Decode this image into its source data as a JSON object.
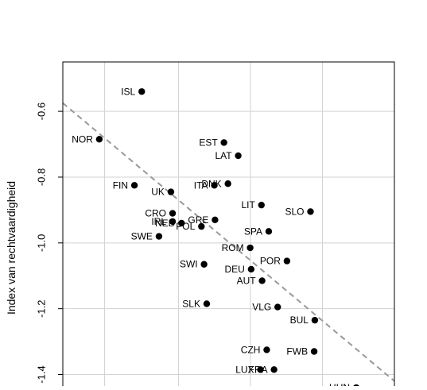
{
  "chart_data": {
    "type": "scatter",
    "title": "",
    "xlabel": "",
    "ylabel": "Index van rechtvaardigheid",
    "ylim": [
      -1.435,
      -0.45
    ],
    "xlim": [
      0,
      100
    ],
    "y_ticks": [
      -0.6,
      -0.8,
      -1.0,
      -1.2,
      -1.4
    ],
    "y_tick_labels": [
      "-0.6",
      "-0.8",
      "-1.0",
      "-1.2",
      "-1.4"
    ],
    "grid": true,
    "points": [
      {
        "label": "ISL",
        "x": 23.8,
        "y": -0.54
      },
      {
        "label": "NOR",
        "x": 11.0,
        "y": -0.685
      },
      {
        "label": "EST",
        "x": 48.6,
        "y": -0.695
      },
      {
        "label": "LAT",
        "x": 52.9,
        "y": -0.735
      },
      {
        "label": "FIN",
        "x": 21.6,
        "y": -0.825
      },
      {
        "label": "UK",
        "x": 32.6,
        "y": -0.845
      },
      {
        "label": "ITA",
        "x": 45.7,
        "y": -0.825
      },
      {
        "label": "DNK",
        "x": 49.8,
        "y": -0.82
      },
      {
        "label": "LIT",
        "x": 59.9,
        "y": -0.885
      },
      {
        "label": "SLO",
        "x": 74.7,
        "y": -0.905
      },
      {
        "label": "CRO",
        "x": 33.1,
        "y": -0.91
      },
      {
        "label": "IRL",
        "x": 33.1,
        "y": -0.935
      },
      {
        "label": "NED",
        "x": 35.8,
        "y": -0.94
      },
      {
        "label": "GRE",
        "x": 45.9,
        "y": -0.93
      },
      {
        "label": "POL",
        "x": 41.8,
        "y": -0.95
      },
      {
        "label": "SWE",
        "x": 29.0,
        "y": -0.98
      },
      {
        "label": "SPA",
        "x": 62.1,
        "y": -0.965
      },
      {
        "label": "ROM",
        "x": 56.5,
        "y": -1.015
      },
      {
        "label": "SWI",
        "x": 42.6,
        "y": -1.065
      },
      {
        "label": "POR",
        "x": 67.6,
        "y": -1.055
      },
      {
        "label": "DEU",
        "x": 56.8,
        "y": -1.08
      },
      {
        "label": "AUT",
        "x": 60.1,
        "y": -1.115
      },
      {
        "label": "SLK",
        "x": 43.4,
        "y": -1.185
      },
      {
        "label": "VLG",
        "x": 64.8,
        "y": -1.195
      },
      {
        "label": "BUL",
        "x": 76.0,
        "y": -1.235
      },
      {
        "label": "CZH",
        "x": 61.5,
        "y": -1.325
      },
      {
        "label": "FWB",
        "x": 75.8,
        "y": -1.33
      },
      {
        "label": "LUX",
        "x": 59.6,
        "y": -1.385
      },
      {
        "label": "FRA",
        "x": 63.7,
        "y": -1.385
      },
      {
        "label": "HUN",
        "x": 88.5,
        "y": -1.44
      }
    ],
    "trend_line": {
      "style": "dashed",
      "color": "#999999",
      "x": [
        0,
        100
      ],
      "y": [
        -0.575,
        -1.42
      ]
    }
  }
}
